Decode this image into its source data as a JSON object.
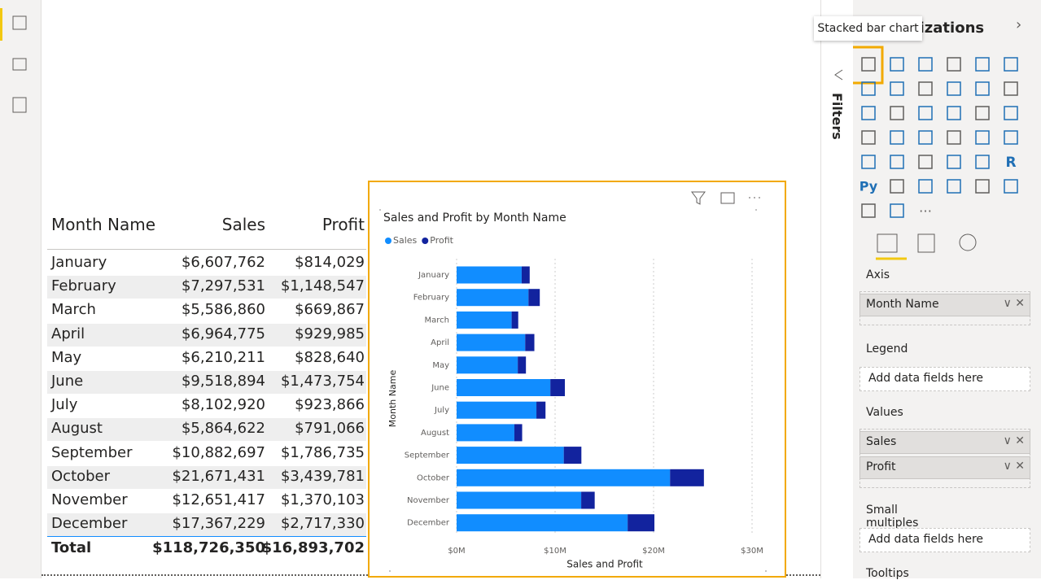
{
  "table": {
    "header": [
      "Month Name",
      "Sales",
      "Profit"
    ],
    "rows": [
      [
        "January",
        "$6,607,762",
        "$814,029"
      ],
      [
        "February",
        "$7,297,531",
        "$1,148,547"
      ],
      [
        "March",
        "$5,586,860",
        "$669,867"
      ],
      [
        "April",
        "$6,964,775",
        "$929,985"
      ],
      [
        "May",
        "$6,210,211",
        "$828,640"
      ],
      [
        "June",
        "$9,518,894",
        "$1,473,754"
      ],
      [
        "July",
        "$8,102,920",
        "$923,866"
      ],
      [
        "August",
        "$5,864,622",
        "$791,066"
      ],
      [
        "September",
        "$10,882,697",
        "$1,786,735"
      ],
      [
        "October",
        "$21,671,431",
        "$3,439,781"
      ],
      [
        "November",
        "$12,651,417",
        "$1,370,103"
      ],
      [
        "December",
        "$17,367,229",
        "$2,717,330"
      ]
    ],
    "total": [
      "Total",
      "$118,726,350",
      "$16,893,702"
    ]
  },
  "chart_data": {
    "type": "stacked_bar",
    "title": "Sales and Profit by Month Name",
    "x_label": "Sales and Profit",
    "y_label": "Month Name",
    "categories": [
      "January",
      "February",
      "March",
      "April",
      "May",
      "June",
      "July",
      "August",
      "September",
      "October",
      "November",
      "December"
    ],
    "series": [
      {
        "name": "Sales",
        "color": "#118dff",
        "values": [
          6607762,
          7297531,
          5586860,
          6964775,
          6210211,
          9518894,
          8102920,
          5864622,
          10882697,
          21671431,
          12651417,
          17367229
        ]
      },
      {
        "name": "Profit",
        "color": "#12239e",
        "values": [
          814029,
          1148547,
          669867,
          929985,
          828640,
          1473754,
          923866,
          791066,
          1786735,
          3439781,
          1370103,
          2717330
        ]
      }
    ],
    "xlim": [
      0,
      30000000
    ],
    "xticks": [
      {
        "value": 0,
        "label": "$0M"
      },
      {
        "value": 10000000,
        "label": "$10M"
      },
      {
        "value": 20000000,
        "label": "$20M"
      },
      {
        "value": 30000000,
        "label": "$30M"
      }
    ],
    "grid": true,
    "legend": "top-left"
  },
  "filters": {
    "label": "Filters"
  },
  "pane": {
    "title": "Visualizations",
    "tooltip": "Stacked bar chart",
    "icon_labels": [
      "R",
      "Py"
    ],
    "wells": [
      {
        "label": "Axis",
        "fields": [
          "Month Name"
        ]
      },
      {
        "label": "Legend",
        "placeholder": "Add data fields here"
      },
      {
        "label": "Values",
        "fields": [
          "Sales",
          "Profit"
        ]
      },
      {
        "label": "Small multiples",
        "placeholder": "Add data fields here"
      },
      {
        "label": "Tooltips"
      }
    ]
  }
}
